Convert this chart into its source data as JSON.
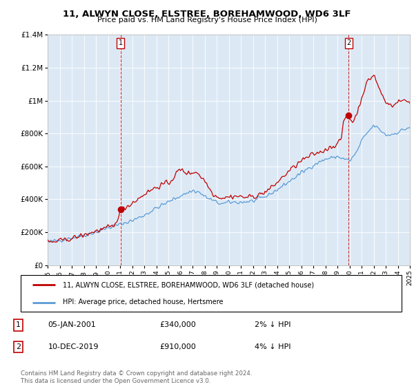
{
  "title": "11, ALWYN CLOSE, ELSTREE, BOREHAMWOOD, WD6 3LF",
  "subtitle": "Price paid vs. HM Land Registry's House Price Index (HPI)",
  "legend_line1": "11, ALWYN CLOSE, ELSTREE, BOREHAMWOOD, WD6 3LF (detached house)",
  "legend_line2": "HPI: Average price, detached house, Hertsmere",
  "annotation1_label": "1",
  "annotation1_date": "05-JAN-2001",
  "annotation1_price": "£340,000",
  "annotation1_hpi": "2% ↓ HPI",
  "annotation2_label": "2",
  "annotation2_date": "10-DEC-2019",
  "annotation2_price": "£910,000",
  "annotation2_hpi": "4% ↓ HPI",
  "footer": "Contains HM Land Registry data © Crown copyright and database right 2024.\nThis data is licensed under the Open Government Licence v3.0.",
  "hpi_color": "#5b9bd5",
  "price_color": "#c00000",
  "annotation_box_color": "#c00000",
  "bg_color": "#dce9f5",
  "ylim": [
    0,
    1400000
  ],
  "yticks": [
    0,
    200000,
    400000,
    600000,
    800000,
    1000000,
    1200000,
    1400000
  ],
  "ytick_labels": [
    "£0",
    "£200K",
    "£400K",
    "£600K",
    "£800K",
    "£1M",
    "£1.2M",
    "£1.4M"
  ],
  "sale1_x": 2001.04,
  "sale1_y": 340000,
  "sale2_x": 2019.92,
  "sale2_y": 910000,
  "xmin": 1995,
  "xmax": 2025
}
